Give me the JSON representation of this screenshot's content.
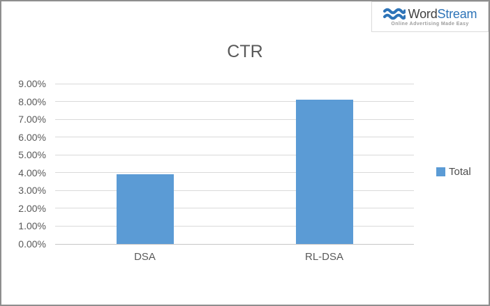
{
  "logo": {
    "brand_word": "Word",
    "brand_stream": "Stream",
    "tagline": "Online Advertising Made Easy",
    "colors": {
      "wave": "#2e74b8",
      "word": "#3f3f3f",
      "stream": "#2e74b8",
      "tagline": "#9b9b9b"
    }
  },
  "chart_data": {
    "type": "bar",
    "title": "CTR",
    "categories": [
      "DSA",
      "RL-DSA"
    ],
    "series": [
      {
        "name": "Total",
        "values": [
          3.9,
          8.1
        ]
      }
    ],
    "value_unit": "percent",
    "ylim": [
      0,
      9
    ],
    "ytick_step": 1,
    "ytick_labels": [
      "0.00%",
      "1.00%",
      "2.00%",
      "3.00%",
      "4.00%",
      "5.00%",
      "6.00%",
      "7.00%",
      "8.00%",
      "9.00%"
    ],
    "grid": true,
    "legend_position": "right",
    "colors": {
      "bar": "#5b9bd5",
      "gridline": "#d9d9d9",
      "axis_line": "#c6c6c6",
      "text": "#595959"
    }
  }
}
